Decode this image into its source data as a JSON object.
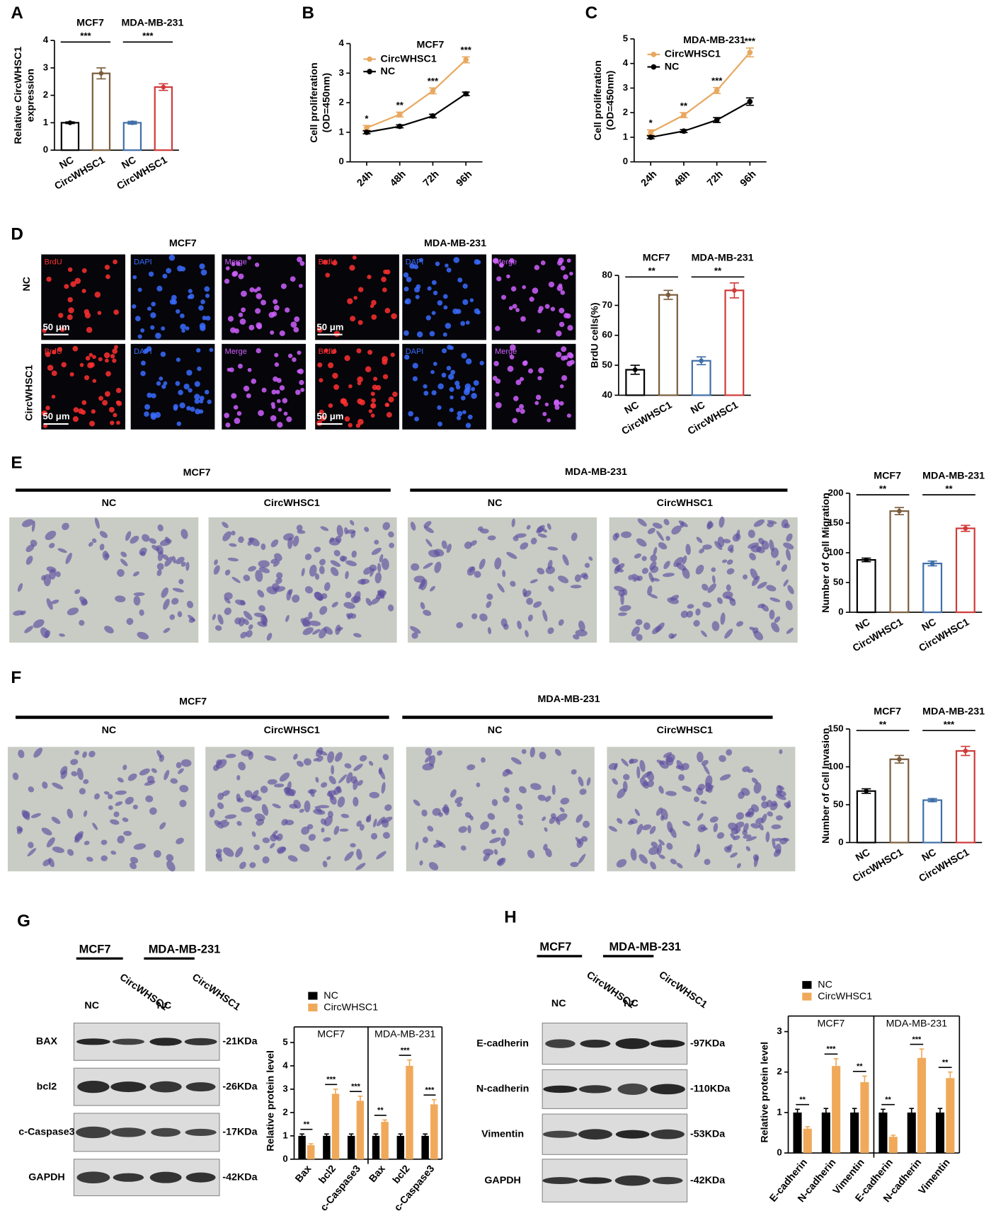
{
  "chart_data": [
    {
      "type": "bar",
      "panel": "A",
      "ylabel": [
        "Relative CircWHSC1",
        "expression"
      ],
      "groups": [
        "MCF7",
        "MDA-MB-231"
      ],
      "categories": [
        "NC",
        "CircWHSC1",
        "NC",
        "CircWHSC1"
      ],
      "values": [
        1.0,
        2.8,
        1.0,
        2.3
      ],
      "errors": [
        0.03,
        0.2,
        0.05,
        0.12
      ],
      "colors": [
        "#000000",
        "#7a5c3a",
        "#3f6fa8",
        "#d03a3a"
      ],
      "ylim": [
        0,
        4
      ],
      "yticks": [
        0,
        1,
        2,
        3,
        4
      ],
      "significance": [
        "***",
        "***"
      ]
    },
    {
      "type": "line",
      "panel": "B",
      "title": "MCF7",
      "ylabel": [
        "Cell proliferation",
        "(OD=450nm)"
      ],
      "categories": [
        "24h",
        "48h",
        "72h",
        "96h"
      ],
      "series": [
        {
          "name": "CircWHSC1",
          "color": "#e8a860",
          "values": [
            1.15,
            1.6,
            2.4,
            3.45
          ],
          "errors": [
            0.08,
            0.08,
            0.1,
            0.1
          ]
        },
        {
          "name": "NC",
          "color": "#000000",
          "values": [
            1.0,
            1.2,
            1.55,
            2.3
          ],
          "errors": [
            0.05,
            0.05,
            0.06,
            0.06
          ]
        }
      ],
      "ylim": [
        0,
        4
      ],
      "yticks": [
        0,
        1,
        2,
        3,
        4
      ],
      "significance": [
        "*",
        "**",
        "***",
        "***"
      ]
    },
    {
      "type": "line",
      "panel": "C",
      "title": "MDA-MB-231",
      "ylabel": [
        "Cell proliferation",
        "(OD=450nm)"
      ],
      "categories": [
        "24h",
        "48h",
        "72h",
        "96h"
      ],
      "series": [
        {
          "name": "CircWHSC1",
          "color": "#e8a860",
          "values": [
            1.2,
            1.9,
            2.9,
            4.45
          ],
          "errors": [
            0.1,
            0.1,
            0.12,
            0.18
          ]
        },
        {
          "name": "NC",
          "color": "#000000",
          "values": [
            1.0,
            1.25,
            1.7,
            2.45
          ],
          "errors": [
            0.06,
            0.06,
            0.1,
            0.15
          ]
        }
      ],
      "ylim": [
        0,
        5
      ],
      "yticks": [
        0,
        1,
        2,
        3,
        4,
        5
      ],
      "significance": [
        "*",
        "**",
        "***",
        "***"
      ]
    },
    {
      "type": "bar",
      "panel": "D",
      "ylabel": [
        "BrdU cells(%)"
      ],
      "groups": [
        "MCF7",
        "MDA-MB-231"
      ],
      "categories": [
        "NC",
        "CircWHSC1",
        "NC",
        "CircWHSC1"
      ],
      "values": [
        48.5,
        73.5,
        51.5,
        75
      ],
      "errors": [
        1.5,
        1.5,
        1.3,
        2.5
      ],
      "colors": [
        "#000000",
        "#7a5c3a",
        "#3f6fa8",
        "#d03a3a"
      ],
      "ylim": [
        40,
        80
      ],
      "yticks": [
        40,
        50,
        60,
        70,
        80
      ],
      "significance": [
        "**",
        "**"
      ]
    },
    {
      "type": "bar",
      "panel": "E",
      "ylabel": [
        "Number of Cell Migration"
      ],
      "groups": [
        "MCF7",
        "MDA-MB-231"
      ],
      "categories": [
        "NC",
        "CircWHSC1",
        "NC",
        "CircWHSC1"
      ],
      "values": [
        88,
        170,
        82,
        141
      ],
      "errors": [
        3,
        6,
        4,
        5
      ],
      "colors": [
        "#000000",
        "#7a5c3a",
        "#3f6fa8",
        "#d03a3a"
      ],
      "ylim": [
        0,
        200
      ],
      "yticks": [
        0,
        50,
        100,
        150,
        200
      ],
      "significance": [
        "**",
        "**"
      ]
    },
    {
      "type": "bar",
      "panel": "F",
      "ylabel": [
        "Number of Cell Invasion"
      ],
      "groups": [
        "MCF7",
        "MDA-MB-231"
      ],
      "categories": [
        "NC",
        "CircWHSC1",
        "NC",
        "CircWHSC1"
      ],
      "values": [
        68,
        110,
        56,
        121
      ],
      "errors": [
        3,
        5,
        2,
        6
      ],
      "colors": [
        "#000000",
        "#7a5c3a",
        "#3f6fa8",
        "#d03a3a"
      ],
      "ylim": [
        0,
        150
      ],
      "yticks": [
        0,
        50,
        100,
        150
      ],
      "significance": [
        "**",
        "***"
      ]
    },
    {
      "type": "grouped_bar",
      "ylabel": [
        "Relative protein level"
      ],
      "groups": [
        "MCF7",
        "MDA-MB-231"
      ],
      "categories": [
        "Bax",
        "bcl2",
        "c-Caspase3",
        "Bax",
        "bcl2",
        "c-Caspase3"
      ],
      "series": [
        {
          "name": "NC",
          "color": "#000000",
          "values": [
            1,
            1,
            1,
            1,
            1,
            1
          ],
          "errors": [
            0.08,
            0.08,
            0.08,
            0.08,
            0.08,
            0.08
          ]
        },
        {
          "name": "CircWHSC1",
          "color": "#f0a95a",
          "values": [
            0.6,
            2.8,
            2.5,
            1.6,
            4.0,
            2.35
          ],
          "errors": [
            0.06,
            0.2,
            0.2,
            0.08,
            0.25,
            0.2
          ]
        }
      ],
      "ylim": [
        0,
        5
      ],
      "yticks": [
        0,
        1,
        2,
        3,
        4,
        5
      ],
      "significance": [
        "**",
        "***",
        "***",
        "**",
        "***",
        "***"
      ]
    },
    {
      "type": "grouped_bar",
      "ylabel": [
        "Relative protein level"
      ],
      "groups": [
        "MCF7",
        "MDA-MB-231"
      ],
      "categories": [
        "E-cadherin",
        "N-cadherin",
        "Vimentin",
        "E-cadherin",
        "N-cadherin",
        "Vimentin"
      ],
      "series": [
        {
          "name": "NC",
          "color": "#000000",
          "values": [
            1,
            1,
            1,
            1,
            1,
            1
          ],
          "errors": [
            0.08,
            0.1,
            0.1,
            0.08,
            0.1,
            0.1
          ]
        },
        {
          "name": "CircWHSC1",
          "color": "#f0a95a",
          "values": [
            0.6,
            2.15,
            1.75,
            0.4,
            2.35,
            1.85
          ],
          "errors": [
            0.05,
            0.18,
            0.15,
            0.04,
            0.22,
            0.15
          ]
        }
      ],
      "ylim": [
        0,
        3
      ],
      "yticks": [
        0,
        1,
        2,
        3
      ],
      "significance": [
        "**",
        "***",
        "**",
        "**",
        "***",
        "**"
      ]
    }
  ],
  "figure": {
    "brdu": {
      "panel": "D",
      "cell_lines": [
        "MCF7",
        "MDA-MB-231"
      ],
      "rows": [
        "NC",
        "CircWHSC1"
      ],
      "channels": [
        "BrdU",
        "DAPI",
        "Merge"
      ],
      "scale_bar": "50 μm"
    },
    "migration": {
      "panel": "E",
      "cell_lines": [
        "MCF7",
        "MDA-MB-231"
      ],
      "conditions": [
        "NC",
        "CircWHSC1"
      ]
    },
    "invasion": {
      "panel": "F",
      "cell_lines": [
        "MCF7",
        "MDA-MB-231"
      ],
      "conditions": [
        "NC",
        "CircWHSC1"
      ]
    },
    "blot_g": {
      "panel": "G",
      "groups": [
        "MCF7",
        "MDA-MB-231"
      ],
      "lanes": [
        "NC",
        "CircWHSC1",
        "NC",
        "CircWHSC1"
      ],
      "proteins": [
        "BAX",
        "bcl2",
        "c-Caspase3",
        "GAPDH"
      ],
      "sizes": [
        "-21KDa",
        "-26KDa",
        "-17KDa",
        "-42KDa"
      ]
    },
    "blot_h": {
      "panel": "H",
      "groups": [
        "MCF7",
        "MDA-MB-231"
      ],
      "lanes": [
        "NC",
        "CircWHSC1",
        "NC",
        "CircWHSC1"
      ],
      "proteins": [
        "E-cadherin",
        "N-cadherin",
        "Vimentin",
        "GAPDH"
      ],
      "sizes": [
        "-97KDa",
        "-110KDa",
        "-53KDa",
        "-42KDa"
      ]
    }
  }
}
